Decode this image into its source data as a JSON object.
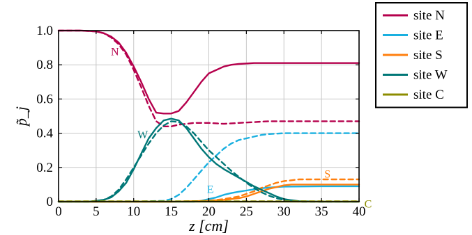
{
  "chart_data": {
    "type": "line",
    "xlabel": "z [cm]",
    "ylabel": "p̃_j",
    "xlim": [
      0,
      40
    ],
    "ylim": [
      0,
      1
    ],
    "xticks": [
      "0",
      "5",
      "10",
      "15",
      "20",
      "25",
      "30",
      "35",
      "40"
    ],
    "yticks": [
      "0",
      "0.2",
      "0.4",
      "0.6",
      "0.8",
      "1.0"
    ],
    "grid": true,
    "legend_position": "outside-top-right",
    "series": [
      {
        "name": "site N",
        "color": "#b5004c",
        "style": "solid",
        "x": [
          0,
          3,
          5,
          6,
          7,
          8,
          9,
          10,
          11,
          12,
          13,
          14,
          15,
          16,
          17,
          18,
          19,
          20,
          21,
          22,
          23,
          24,
          26,
          28,
          30,
          35,
          40
        ],
        "y": [
          1.0,
          1.0,
          0.995,
          0.985,
          0.965,
          0.93,
          0.87,
          0.79,
          0.7,
          0.6,
          0.52,
          0.515,
          0.515,
          0.53,
          0.58,
          0.64,
          0.7,
          0.75,
          0.77,
          0.79,
          0.8,
          0.805,
          0.81,
          0.81,
          0.81,
          0.81,
          0.81
        ]
      },
      {
        "name": "site N",
        "color": "#b5004c",
        "style": "dashed",
        "x": [
          0,
          3,
          5,
          6,
          7,
          8,
          9,
          10,
          11,
          12,
          13,
          14,
          15,
          16,
          17,
          18,
          19,
          20,
          22,
          24,
          26,
          28,
          30,
          35,
          40
        ],
        "y": [
          1.0,
          1.0,
          0.995,
          0.985,
          0.96,
          0.92,
          0.86,
          0.77,
          0.67,
          0.56,
          0.47,
          0.44,
          0.44,
          0.45,
          0.455,
          0.46,
          0.46,
          0.46,
          0.455,
          0.46,
          0.465,
          0.47,
          0.47,
          0.47,
          0.47
        ]
      },
      {
        "name": "site E",
        "color": "#1ab0e0",
        "style": "solid",
        "x": [
          0,
          10,
          15,
          18,
          19,
          20,
          21,
          22,
          23,
          24,
          25,
          26,
          27,
          28,
          29,
          30,
          35,
          40
        ],
        "y": [
          0,
          0,
          0,
          0.0,
          0.005,
          0.015,
          0.025,
          0.04,
          0.05,
          0.058,
          0.065,
          0.072,
          0.078,
          0.082,
          0.085,
          0.088,
          0.09,
          0.09
        ]
      },
      {
        "name": "site E",
        "color": "#1ab0e0",
        "style": "dashed",
        "x": [
          0,
          10,
          14,
          15,
          16,
          17,
          18,
          19,
          20,
          21,
          22,
          23,
          24,
          25,
          26,
          27,
          28,
          30,
          35,
          40
        ],
        "y": [
          0,
          0,
          0.005,
          0.015,
          0.04,
          0.08,
          0.13,
          0.18,
          0.23,
          0.27,
          0.31,
          0.34,
          0.36,
          0.37,
          0.38,
          0.39,
          0.395,
          0.4,
          0.4,
          0.4
        ]
      },
      {
        "name": "site S",
        "color": "#ff7f0e",
        "style": "solid",
        "x": [
          0,
          15,
          20,
          22,
          24,
          25,
          26,
          27,
          28,
          29,
          30,
          31,
          32,
          35,
          40
        ],
        "y": [
          0,
          0,
          0.005,
          0.01,
          0.02,
          0.03,
          0.045,
          0.06,
          0.075,
          0.085,
          0.095,
          0.1,
          0.1,
          0.1,
          0.1
        ]
      },
      {
        "name": "site S",
        "color": "#ff7f0e",
        "style": "dashed",
        "x": [
          0,
          15,
          20,
          22,
          24,
          25,
          26,
          27,
          28,
          29,
          30,
          31,
          32,
          33,
          35,
          40
        ],
        "y": [
          0,
          0,
          0.005,
          0.015,
          0.03,
          0.045,
          0.06,
          0.08,
          0.095,
          0.11,
          0.12,
          0.125,
          0.13,
          0.13,
          0.13,
          0.13
        ]
      },
      {
        "name": "site W",
        "color": "#007777",
        "style": "solid",
        "x": [
          0,
          4,
          5,
          6,
          7,
          8,
          9,
          10,
          11,
          12,
          13,
          14,
          15,
          16,
          17,
          18,
          19,
          20,
          21,
          22,
          23,
          24,
          25,
          26,
          27,
          28,
          29,
          30,
          31,
          32,
          35,
          40
        ],
        "y": [
          0,
          0,
          0.005,
          0.01,
          0.025,
          0.06,
          0.11,
          0.19,
          0.28,
          0.37,
          0.43,
          0.475,
          0.485,
          0.475,
          0.43,
          0.37,
          0.31,
          0.26,
          0.22,
          0.19,
          0.165,
          0.14,
          0.115,
          0.09,
          0.07,
          0.05,
          0.03,
          0.015,
          0.008,
          0.003,
          0.0,
          0.0
        ]
      },
      {
        "name": "site W",
        "color": "#007777",
        "style": "dashed",
        "x": [
          0,
          4,
          5,
          6,
          7,
          8,
          9,
          10,
          11,
          12,
          13,
          14,
          15,
          16,
          17,
          18,
          19,
          20,
          21,
          22,
          23,
          24,
          25,
          26,
          27,
          28,
          29,
          30,
          31,
          32,
          35,
          40
        ],
        "y": [
          0,
          0,
          0.005,
          0.01,
          0.03,
          0.07,
          0.13,
          0.2,
          0.27,
          0.34,
          0.4,
          0.445,
          0.47,
          0.465,
          0.44,
          0.4,
          0.35,
          0.3,
          0.26,
          0.22,
          0.18,
          0.145,
          0.11,
          0.08,
          0.055,
          0.035,
          0.02,
          0.01,
          0.004,
          0.0,
          0.0,
          0.0
        ]
      },
      {
        "name": "site C",
        "color": "#8c8c00",
        "style": "solid",
        "x": [
          0,
          40
        ],
        "y": [
          0,
          0
        ]
      },
      {
        "name": "site C",
        "color": "#8c8c00",
        "style": "dashed",
        "x": [
          0,
          40
        ],
        "y": [
          0.002,
          0.002
        ]
      }
    ],
    "legend": [
      {
        "label": "site N",
        "color": "#b5004c"
      },
      {
        "label": "site E",
        "color": "#1ab0e0"
      },
      {
        "label": "site S",
        "color": "#ff7f0e"
      },
      {
        "label": "site W",
        "color": "#007777"
      },
      {
        "label": "site C",
        "color": "#8c8c00"
      }
    ],
    "annotations": [
      {
        "text": "N",
        "x": 7.5,
        "y": 0.88,
        "color": "#b5004c"
      },
      {
        "text": "W",
        "x": 11.2,
        "y": 0.395,
        "color": "#007777"
      },
      {
        "text": "E",
        "x": 20.2,
        "y": 0.075,
        "color": "#1ab0e0"
      },
      {
        "text": "S",
        "x": 35.8,
        "y": 0.165,
        "color": "#ff7f0e"
      },
      {
        "text": "C",
        "x": 41.2,
        "y": -0.01,
        "color": "#8c8c00"
      }
    ]
  }
}
